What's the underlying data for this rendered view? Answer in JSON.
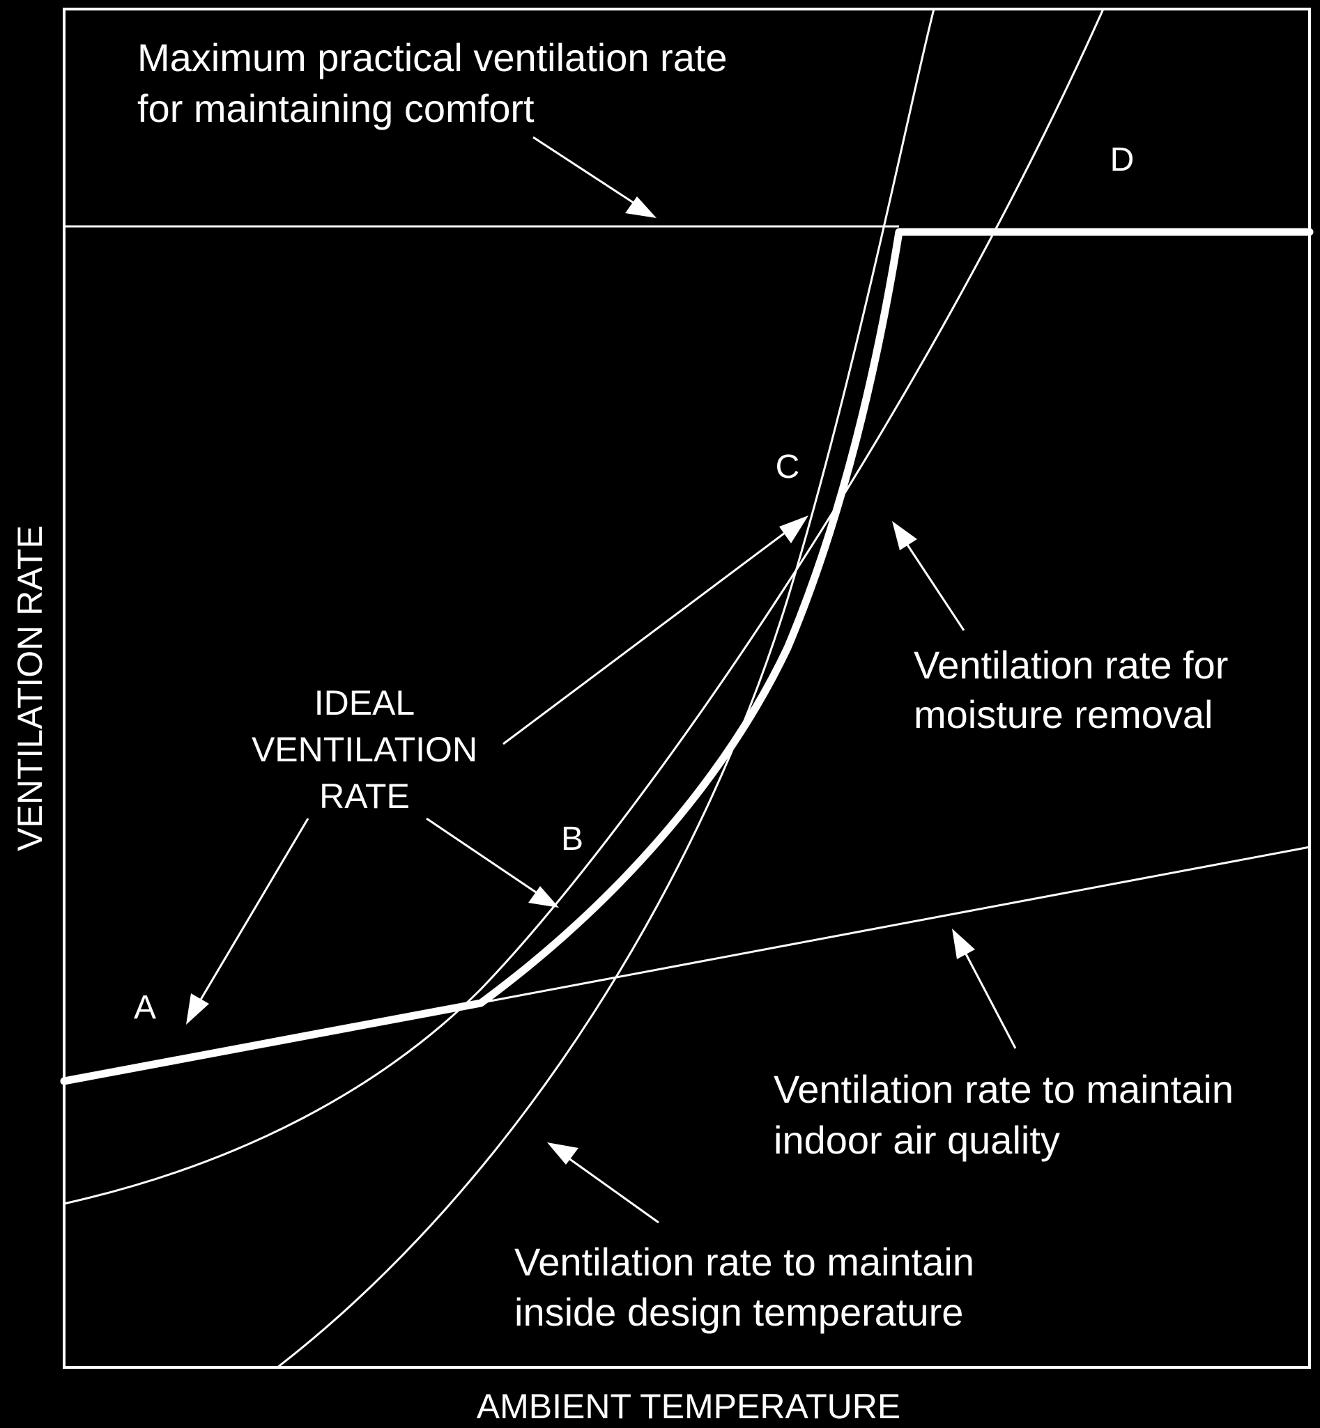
{
  "labels": {
    "max_practical_line1": "Maximum practical ventilation rate",
    "max_practical_line2": "for maintaining comfort",
    "ideal_line1": "IDEAL",
    "ideal_line2": "VENTILATION",
    "ideal_line3": "RATE",
    "moisture_line1": "Ventilation rate for",
    "moisture_line2": "moisture removal",
    "air_quality_line1": "Ventilation rate to maintain",
    "air_quality_line2": "indoor air quality",
    "temperature_line1": "Ventilation rate to maintain",
    "temperature_line2": "inside design temperature",
    "point_a": "A",
    "point_b": "B",
    "point_c": "C",
    "point_d": "D"
  },
  "axes": {
    "x_label": "AMBIENT TEMPERATURE",
    "y_label": "VENTILATION RATE"
  },
  "colors": {
    "background": "#000000",
    "foreground": "#ffffff"
  }
}
